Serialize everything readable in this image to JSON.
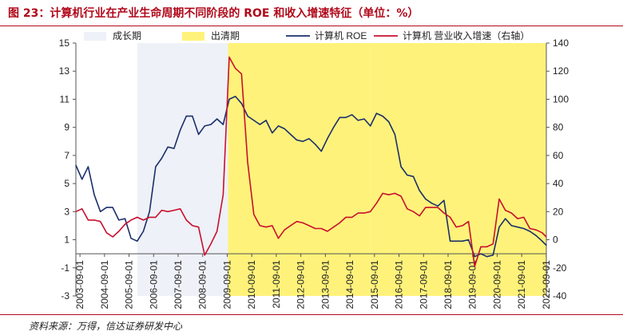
{
  "title": "图 23：计算机行业在产业生命周期不同阶段的 ROE 和收入增速特征（单位：%）",
  "source": "资料来源：万得，信达证券研发中心",
  "colors": {
    "growth_band": "#eef1f7",
    "clearing_band": "#fff27a",
    "roe_line": "#1a2f6b",
    "revenue_line": "#c8102e",
    "title": "#b0081a"
  },
  "chart_data": {
    "type": "line",
    "legend": [
      {
        "key": "growth",
        "label": "成长期"
      },
      {
        "key": "clearing",
        "label": "出清期"
      },
      {
        "key": "roe",
        "label": "计算机 ROE"
      },
      {
        "key": "revenue",
        "label": "计算机 营业收入增速（右轴）"
      }
    ],
    "legend_position": "top",
    "grid": false,
    "x_range": [
      2003.5,
      2022.67
    ],
    "x_ticks": [
      "2003-09-01",
      "2004-09-01",
      "2005-09-01",
      "2006-09-01",
      "2007-09-01",
      "2008-09-01",
      "2009-09-01",
      "2010-09-01",
      "2011-09-01",
      "2012-09-01",
      "2013-09-01",
      "2014-09-01",
      "2015-09-01",
      "2016-09-01",
      "2017-09-01",
      "2018-09-01",
      "2019-09-01",
      "2020-09-01",
      "2021-09-01",
      "2022-09-01"
    ],
    "y_left": {
      "min": -3,
      "max": 15,
      "ticks": [
        -3,
        -1,
        1,
        3,
        5,
        7,
        9,
        11,
        13,
        15
      ]
    },
    "y_right": {
      "min": -40,
      "max": 140,
      "ticks": [
        -40,
        -20,
        0,
        20,
        40,
        60,
        80,
        100,
        120,
        140
      ]
    },
    "phases": [
      {
        "type": "growth",
        "start": 2006.0,
        "end": 2009.7
      },
      {
        "type": "clearing",
        "start": 2009.7,
        "end": 2015.5
      },
      {
        "type": "clearing",
        "start": 2015.5,
        "end": 2022.67
      }
    ],
    "series": [
      {
        "name": "计算机 ROE",
        "axis": "left",
        "points": [
          [
            2003.5,
            6.3
          ],
          [
            2003.75,
            5.3
          ],
          [
            2004.0,
            6.2
          ],
          [
            2004.25,
            4.2
          ],
          [
            2004.5,
            3.0
          ],
          [
            2004.75,
            3.3
          ],
          [
            2005.0,
            3.3
          ],
          [
            2005.25,
            2.4
          ],
          [
            2005.5,
            2.5
          ],
          [
            2005.75,
            1.1
          ],
          [
            2006.0,
            0.9
          ],
          [
            2006.25,
            1.6
          ],
          [
            2006.5,
            3.0
          ],
          [
            2006.75,
            6.2
          ],
          [
            2007.0,
            6.8
          ],
          [
            2007.25,
            7.6
          ],
          [
            2007.5,
            7.5
          ],
          [
            2007.75,
            8.8
          ],
          [
            2008.0,
            9.8
          ],
          [
            2008.25,
            9.8
          ],
          [
            2008.5,
            8.5
          ],
          [
            2008.75,
            9.1
          ],
          [
            2009.0,
            9.2
          ],
          [
            2009.25,
            9.6
          ],
          [
            2009.5,
            9.2
          ],
          [
            2009.75,
            11.0
          ],
          [
            2010.0,
            11.2
          ],
          [
            2010.25,
            10.7
          ],
          [
            2010.5,
            9.8
          ],
          [
            2010.75,
            9.5
          ],
          [
            2011.0,
            9.2
          ],
          [
            2011.25,
            9.5
          ],
          [
            2011.5,
            8.6
          ],
          [
            2011.75,
            9.1
          ],
          [
            2012.0,
            8.9
          ],
          [
            2012.25,
            8.5
          ],
          [
            2012.5,
            8.1
          ],
          [
            2012.75,
            8.0
          ],
          [
            2013.0,
            8.2
          ],
          [
            2013.25,
            7.8
          ],
          [
            2013.5,
            7.3
          ],
          [
            2013.75,
            8.2
          ],
          [
            2014.0,
            9.0
          ],
          [
            2014.25,
            9.7
          ],
          [
            2014.5,
            9.7
          ],
          [
            2014.75,
            9.9
          ],
          [
            2015.0,
            9.5
          ],
          [
            2015.25,
            9.6
          ],
          [
            2015.5,
            9.1
          ],
          [
            2015.75,
            10.0
          ],
          [
            2016.0,
            9.8
          ],
          [
            2016.25,
            9.4
          ],
          [
            2016.5,
            8.5
          ],
          [
            2016.75,
            6.2
          ],
          [
            2017.0,
            5.6
          ],
          [
            2017.25,
            5.5
          ],
          [
            2017.5,
            4.5
          ],
          [
            2017.75,
            3.9
          ],
          [
            2018.0,
            3.6
          ],
          [
            2018.25,
            3.4
          ],
          [
            2018.5,
            3.8
          ],
          [
            2018.75,
            0.9
          ],
          [
            2019.0,
            0.9
          ],
          [
            2019.25,
            0.9
          ],
          [
            2019.5,
            1.0
          ],
          [
            2019.75,
            -0.2
          ],
          [
            2020.0,
            0.0
          ],
          [
            2020.25,
            -0.2
          ],
          [
            2020.5,
            -0.1
          ],
          [
            2020.75,
            1.9
          ],
          [
            2021.0,
            2.5
          ],
          [
            2021.25,
            2.0
          ],
          [
            2021.5,
            1.9
          ],
          [
            2021.75,
            1.8
          ],
          [
            2022.0,
            1.6
          ],
          [
            2022.25,
            1.3
          ],
          [
            2022.5,
            0.9
          ],
          [
            2022.67,
            0.6
          ]
        ]
      },
      {
        "name": "计算机 营业收入增速（右轴）",
        "axis": "right",
        "points": [
          [
            2003.5,
            20
          ],
          [
            2003.75,
            22
          ],
          [
            2004.0,
            14
          ],
          [
            2004.25,
            14
          ],
          [
            2004.5,
            13
          ],
          [
            2004.75,
            5
          ],
          [
            2005.0,
            2
          ],
          [
            2005.25,
            6
          ],
          [
            2005.5,
            11
          ],
          [
            2005.75,
            14
          ],
          [
            2006.0,
            16
          ],
          [
            2006.25,
            14
          ],
          [
            2006.5,
            16
          ],
          [
            2006.75,
            16
          ],
          [
            2007.0,
            21
          ],
          [
            2007.25,
            20
          ],
          [
            2007.5,
            21
          ],
          [
            2007.75,
            22
          ],
          [
            2008.0,
            14
          ],
          [
            2008.25,
            10
          ],
          [
            2008.5,
            9
          ],
          [
            2008.75,
            -11
          ],
          [
            2009.0,
            -3
          ],
          [
            2009.25,
            6
          ],
          [
            2009.5,
            32
          ],
          [
            2009.75,
            130
          ],
          [
            2010.0,
            122
          ],
          [
            2010.25,
            118
          ],
          [
            2010.5,
            55
          ],
          [
            2010.75,
            18
          ],
          [
            2011.0,
            10
          ],
          [
            2011.25,
            9
          ],
          [
            2011.5,
            10
          ],
          [
            2011.75,
            1
          ],
          [
            2012.0,
            7
          ],
          [
            2012.25,
            10
          ],
          [
            2012.5,
            13
          ],
          [
            2012.75,
            12
          ],
          [
            2013.0,
            10
          ],
          [
            2013.25,
            8
          ],
          [
            2013.5,
            8
          ],
          [
            2013.75,
            6
          ],
          [
            2014.0,
            9
          ],
          [
            2014.25,
            12
          ],
          [
            2014.5,
            16
          ],
          [
            2014.75,
            16
          ],
          [
            2015.0,
            19
          ],
          [
            2015.25,
            19
          ],
          [
            2015.5,
            20
          ],
          [
            2015.75,
            26
          ],
          [
            2016.0,
            33
          ],
          [
            2016.25,
            32
          ],
          [
            2016.5,
            33
          ],
          [
            2016.75,
            31
          ],
          [
            2017.0,
            22
          ],
          [
            2017.25,
            20
          ],
          [
            2017.5,
            17
          ],
          [
            2017.75,
            23
          ],
          [
            2018.0,
            23
          ],
          [
            2018.25,
            23
          ],
          [
            2018.5,
            19
          ],
          [
            2018.75,
            16
          ],
          [
            2019.0,
            9
          ],
          [
            2019.25,
            10
          ],
          [
            2019.5,
            13
          ],
          [
            2019.75,
            -19
          ],
          [
            2020.0,
            -5
          ],
          [
            2020.25,
            -5
          ],
          [
            2020.5,
            -3
          ],
          [
            2020.75,
            29
          ],
          [
            2021.0,
            21
          ],
          [
            2021.25,
            19
          ],
          [
            2021.5,
            15
          ],
          [
            2021.75,
            16
          ],
          [
            2022.0,
            8
          ],
          [
            2022.25,
            7
          ],
          [
            2022.5,
            5
          ],
          [
            2022.67,
            2
          ]
        ]
      }
    ]
  }
}
